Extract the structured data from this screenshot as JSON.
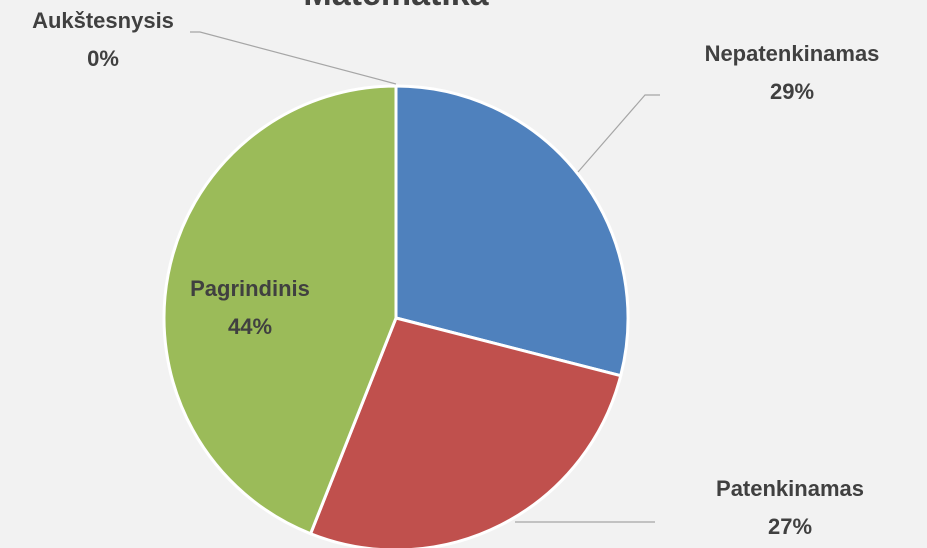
{
  "chart_data": {
    "type": "pie",
    "title": "Matematika",
    "categories": [
      "Nepatenkinamas",
      "Patenkinamas",
      "Pagrindinis",
      "Aukštesnysis"
    ],
    "values": [
      29,
      27,
      44,
      0
    ],
    "value_labels": [
      "29%",
      "27%",
      "44%",
      "0%"
    ],
    "colors": [
      "#4f81bd",
      "#c0504d",
      "#9bbb59",
      "#8064a2"
    ]
  }
}
